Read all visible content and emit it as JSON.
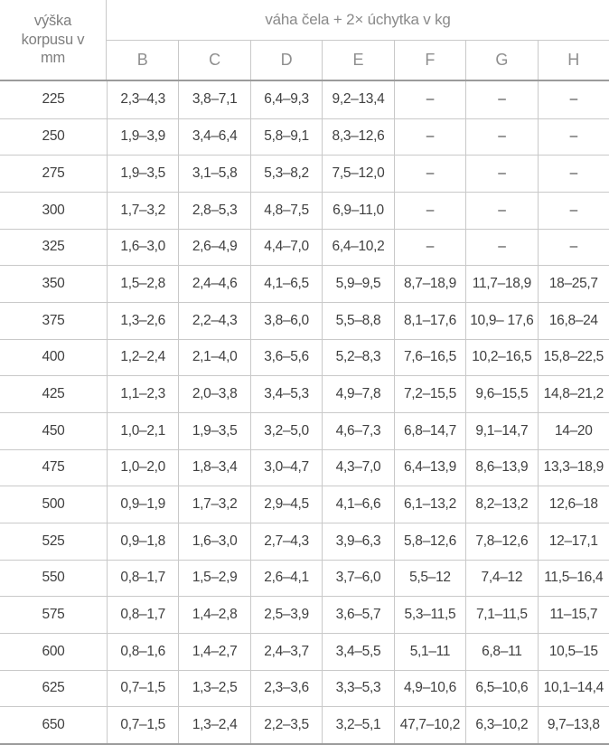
{
  "colors": {
    "background": "#ffffff",
    "border_light": "#c9c9c9",
    "border_strong": "#9b9b9b",
    "header_text": "#8a8a8a",
    "data_text": "#3f3f3f"
  },
  "chart_data": {
    "type": "table",
    "title": "váha čela + 2× úchytka v kg",
    "row_header": "výška korpusu v mm",
    "columns": [
      "B",
      "C",
      "D",
      "E",
      "F",
      "G",
      "H"
    ],
    "empty_marker": "–",
    "rows": [
      {
        "label": "225",
        "values": [
          "2,3–4,3",
          "3,8–7,1",
          "6,4–9,3",
          "9,2–13,4",
          "–",
          "–",
          "–"
        ]
      },
      {
        "label": "250",
        "values": [
          "1,9–3,9",
          "3,4–6,4",
          "5,8–9,1",
          "8,3–12,6",
          "–",
          "–",
          "–"
        ]
      },
      {
        "label": "275",
        "values": [
          "1,9–3,5",
          "3,1–5,8",
          "5,3–8,2",
          "7,5–12,0",
          "–",
          "–",
          "–"
        ]
      },
      {
        "label": "300",
        "values": [
          "1,7–3,2",
          "2,8–5,3",
          "4,8–7,5",
          "6,9–11,0",
          "–",
          "–",
          "–"
        ]
      },
      {
        "label": "325",
        "values": [
          "1,6–3,0",
          "2,6–4,9",
          "4,4–7,0",
          "6,4–10,2",
          "–",
          "–",
          "–"
        ]
      },
      {
        "label": "350",
        "values": [
          "1,5–2,8",
          "2,4–4,6",
          "4,1–6,5",
          "5,9–9,5",
          "8,7–18,9",
          "11,7–18,9",
          "18–25,7"
        ]
      },
      {
        "label": "375",
        "values": [
          "1,3–2,6",
          "2,2–4,3",
          "3,8–6,0",
          "5,5–8,8",
          "8,1–17,6",
          "10,9– 17,6",
          "16,8–24"
        ]
      },
      {
        "label": "400",
        "values": [
          "1,2–2,4",
          "2,1–4,0",
          "3,6–5,6",
          "5,2–8,3",
          "7,6–16,5",
          "10,2–16,5",
          "15,8–22,5"
        ]
      },
      {
        "label": "425",
        "values": [
          "1,1–2,3",
          "2,0–3,8",
          "3,4–5,3",
          "4,9–7,8",
          "7,2–15,5",
          "9,6–15,5",
          "14,8–21,2"
        ]
      },
      {
        "label": "450",
        "values": [
          "1,0–2,1",
          "1,9–3,5",
          "3,2–5,0",
          "4,6–7,3",
          "6,8–14,7",
          "9,1–14,7",
          "14–20"
        ]
      },
      {
        "label": "475",
        "values": [
          "1,0–2,0",
          "1,8–3,4",
          "3,0–4,7",
          "4,3–7,0",
          "6,4–13,9",
          "8,6–13,9",
          "13,3–18,9"
        ]
      },
      {
        "label": "500",
        "values": [
          "0,9–1,9",
          "1,7–3,2",
          "2,9–4,5",
          "4,1–6,6",
          "6,1–13,2",
          "8,2–13,2",
          "12,6–18"
        ]
      },
      {
        "label": "525",
        "values": [
          "0,9–1,8",
          "1,6–3,0",
          "2,7–4,3",
          "3,9–6,3",
          "5,8–12,6",
          "7,8–12,6",
          "12–17,1"
        ]
      },
      {
        "label": "550",
        "values": [
          "0,8–1,7",
          "1,5–2,9",
          "2,6–4,1",
          "3,7–6,0",
          "5,5–12",
          "7,4–12",
          "11,5–16,4"
        ]
      },
      {
        "label": "575",
        "values": [
          "0,8–1,7",
          "1,4–2,8",
          "2,5–3,9",
          "3,6–5,7",
          "5,3–11,5",
          "7,1–11,5",
          "11–15,7"
        ]
      },
      {
        "label": "600",
        "values": [
          "0,8–1,6",
          "1,4–2,7",
          "2,4–3,7",
          "3,4–5,5",
          "5,1–11",
          "6,8–11",
          "10,5–15"
        ]
      },
      {
        "label": "625",
        "values": [
          "0,7–1,5",
          "1,3–2,5",
          "2,3–3,6",
          "3,3–5,3",
          "4,9–10,6",
          "6,5–10,6",
          "10,1–14,4"
        ]
      },
      {
        "label": "650",
        "values": [
          "0,7–1,5",
          "1,3–2,4",
          "2,2–3,5",
          "3,2–5,1",
          "47,7–10,2",
          "6,3–10,2",
          "9,7–13,8"
        ]
      }
    ]
  }
}
